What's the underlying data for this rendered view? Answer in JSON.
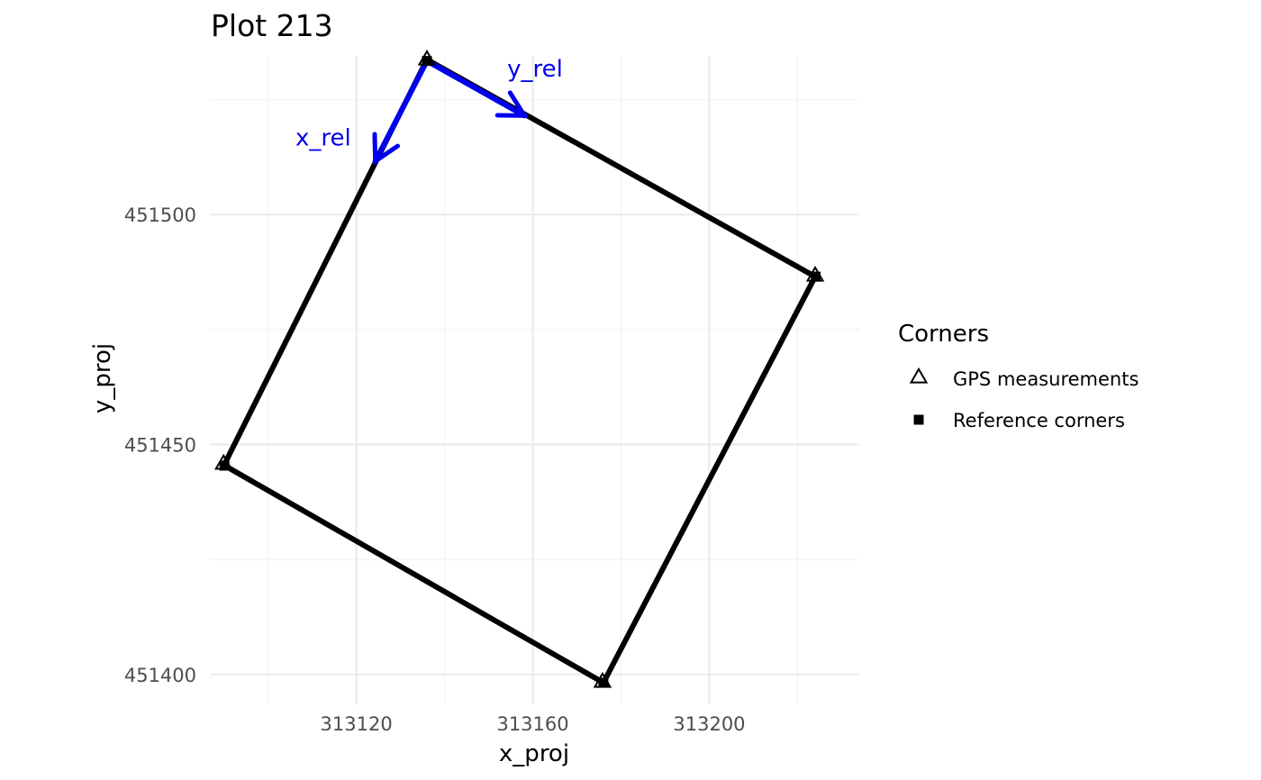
{
  "chart_data": {
    "type": "scatter",
    "title": "Plot 213",
    "xlabel": "x_proj",
    "ylabel": "y_proj",
    "xlim": [
      313087,
      313234
    ],
    "ylim": [
      451393.5,
      451534.5
    ],
    "x_ticks": [
      313120,
      313160,
      313200
    ],
    "x_tick_labels": [
      "313120",
      "313160",
      "313200"
    ],
    "x_minor_ticks": [
      313100,
      313140,
      313180,
      313220
    ],
    "y_ticks": [
      451400,
      451450,
      451500
    ],
    "y_tick_labels": [
      "451400",
      "451450",
      "451500"
    ],
    "y_minor_ticks": [
      451425,
      451475,
      451525
    ],
    "grid": true,
    "legend": {
      "title": "Corners",
      "position": "right",
      "entries": [
        {
          "label": "GPS measurements",
          "shape": "open-triangle"
        },
        {
          "label": "Reference corners",
          "shape": "filled-square"
        }
      ]
    },
    "plot_outline": {
      "color": "#000000",
      "points": [
        {
          "x": 313136.0,
          "y": 451533.7
        },
        {
          "x": 313224.0,
          "y": 451486.5
        },
        {
          "x": 313176.0,
          "y": 451398.2
        },
        {
          "x": 313090.0,
          "y": 451445.5
        },
        {
          "x": 313136.0,
          "y": 451533.7
        }
      ]
    },
    "series": [
      {
        "name": "GPS measurements",
        "shape": "open-triangle",
        "points": [
          {
            "x": 313136.0,
            "y": 451533.7
          },
          {
            "x": 313224.0,
            "y": 451486.7
          },
          {
            "x": 313175.8,
            "y": 451398.4
          },
          {
            "x": 313089.9,
            "y": 451445.8
          }
        ]
      },
      {
        "name": "Reference corners",
        "shape": "filled-square",
        "points": [
          {
            "x": 313136.0,
            "y": 451533.4
          },
          {
            "x": 313224.1,
            "y": 451486.5
          },
          {
            "x": 313176.0,
            "y": 451398.2
          },
          {
            "x": 313090.1,
            "y": 451445.4
          }
        ]
      }
    ],
    "arrows": [
      {
        "label": "x_rel",
        "color": "#0000ee",
        "from": {
          "x": 313136.0,
          "y": 451533.4
        },
        "to": {
          "x": 313124.3,
          "y": 451511.6
        },
        "label_pos": {
          "x": 313112.5,
          "y": 451515.0
        }
      },
      {
        "label": "y_rel",
        "color": "#0000ee",
        "from": {
          "x": 313136.0,
          "y": 451533.4
        },
        "to": {
          "x": 313158.1,
          "y": 451521.5
        },
        "label_pos": {
          "x": 313160.5,
          "y": 451530.0
        }
      }
    ]
  }
}
